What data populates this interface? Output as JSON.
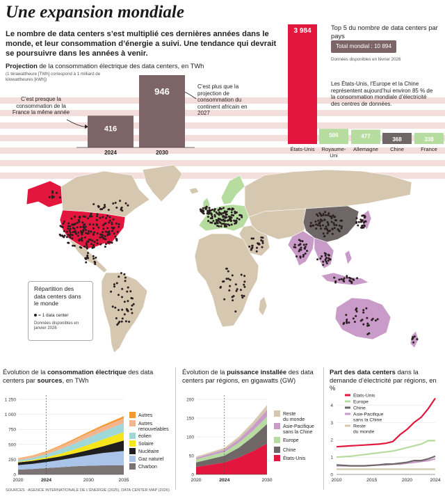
{
  "header": {
    "title": "Une expansion mondiale",
    "intro": "Le nombre de data centers s’est multiplié ces dernières années dans le monde, et leur consommation d’énergie a suivi. Une tendance qui devrait se poursuivre dans les années à venir."
  },
  "projection": {
    "title_bold": "Projection",
    "title_rest": " de la consommation électrique des data centers, en TWh",
    "unit_note": "(1 térawattheure [TWh] correspond à 1 milliard de kilowattheures [kWh])",
    "note_left": "C’est presque la consommation de la France la même année",
    "note_right": "C’est plus que la projection de consommation du continent africain en 2027"
  },
  "top5": {
    "title": "Top 5 du nombre de data centers par pays",
    "total": "Total mondial : 10 894",
    "date": "Données disponibles en février 2026",
    "note": "Les États-Unis, l’Europe et la Chine représentent aujourd’hui environ 85 % de la consommation mondiale d’électricité des centres de données."
  },
  "map": {
    "legend_title": "Répartition des data centers dans le monde",
    "legend_item": "= 1 data center",
    "legend_date": "Données disponibles en janvier 2026"
  },
  "footer": {
    "sources": "SOURCES : AGENCE INTERNATIONALE DE L’ÉNERGIE (2025), DATA CENTER MAP (2026)"
  },
  "colors": {
    "red": "#e3173e",
    "mauve": "#7d6567",
    "green": "#b6dca0",
    "grey": "#6f6767",
    "purple": "#c89bc8",
    "beige": "#d6c8b0",
    "orange": "#f39a2e",
    "peach": "#f4b48e",
    "cyan": "#9fd8d6",
    "yellow": "#f5e51a",
    "black": "#1f1f1f",
    "lightblue": "#a9c4e8",
    "darkgrey": "#7c7474"
  },
  "chart_data": [
    {
      "id": "projection",
      "type": "bar",
      "categories": [
        "2024",
        "2030"
      ],
      "values": [
        416,
        946
      ],
      "value_labels": [
        "416",
        "946"
      ],
      "ylabel": "TWh"
    },
    {
      "id": "top5",
      "type": "bar",
      "categories": [
        "États-Unis",
        "Royaume-Uni",
        "Allemagne",
        "Chine",
        "France"
      ],
      "values": [
        3984,
        506,
        477,
        368,
        338
      ],
      "value_labels": [
        "3 984",
        "506",
        "477",
        "368",
        "338"
      ],
      "colors": [
        "#e3173e",
        "#b6dca0",
        "#b6dca0",
        "#6f6767",
        "#b6dca0"
      ]
    },
    {
      "id": "sources",
      "type": "area",
      "title_parts": [
        "Évolution de la ",
        "consommation électrique",
        " des data centers par ",
        "sources",
        ", en TWh"
      ],
      "x": [
        2020,
        2022,
        2024,
        2026,
        2028,
        2030,
        2032,
        2035
      ],
      "xticks": [
        "2020",
        "2024",
        "2030",
        "2035"
      ],
      "yticks": [
        "1 250",
        "1 000",
        "750",
        "500",
        "250",
        "0"
      ],
      "ylim": [
        0,
        1250
      ],
      "series": [
        {
          "name": "Charbon",
          "color": "#7c7474",
          "values": [
            80,
            90,
            105,
            120,
            135,
            145,
            150,
            150
          ]
        },
        {
          "name": "Gaz naturel",
          "color": "#a9c4e8",
          "values": [
            75,
            85,
            100,
            120,
            145,
            175,
            205,
            240
          ]
        },
        {
          "name": "Nucléaire",
          "color": "#1f1f1f",
          "values": [
            45,
            50,
            55,
            60,
            70,
            85,
            110,
            175
          ]
        },
        {
          "name": "Solaire",
          "color": "#f5e51a",
          "values": [
            10,
            15,
            25,
            45,
            65,
            90,
            115,
            140
          ]
        },
        {
          "name": "éolien",
          "color": "#9fd8d6",
          "values": [
            25,
            35,
            50,
            75,
            100,
            120,
            135,
            150
          ]
        },
        {
          "name": "Autres renouvelables",
          "color": "#f4b48e",
          "values": [
            30,
            35,
            40,
            50,
            60,
            70,
            75,
            80
          ]
        },
        {
          "name": "Autres",
          "color": "#f39a2e",
          "values": [
            5,
            5,
            10,
            15,
            20,
            25,
            30,
            35
          ]
        }
      ]
    },
    {
      "id": "puissance",
      "type": "area",
      "title_parts": [
        "Évolution de la ",
        "puissance installée",
        " des data centers par régions, en gigawatts (GW)"
      ],
      "x": [
        2020,
        2022,
        2024,
        2026,
        2028,
        2030
      ],
      "xticks": [
        "2020",
        "2024",
        "2030"
      ],
      "yticks": [
        "200",
        "150",
        "100",
        "50",
        "0"
      ],
      "ylim": [
        0,
        200
      ],
      "series": [
        {
          "name": "États-Unis",
          "color": "#e3173e",
          "values": [
            20,
            26,
            32,
            45,
            62,
            82
          ]
        },
        {
          "name": "Chine",
          "color": "#6f6767",
          "values": [
            12,
            15,
            18,
            26,
            38,
            52
          ]
        },
        {
          "name": "Europe",
          "color": "#b6dca0",
          "values": [
            8,
            9,
            10,
            13,
            16,
            20
          ]
        },
        {
          "name": "Asie-Pacifique sans la Chine",
          "color": "#c89bc8",
          "values": [
            4,
            5,
            6,
            9,
            13,
            18
          ]
        },
        {
          "name": "Reste du monde",
          "color": "#d6c8b0",
          "values": [
            3,
            4,
            5,
            7,
            10,
            13
          ]
        }
      ]
    },
    {
      "id": "part",
      "type": "line",
      "title_parts": [
        "Part des data centers",
        " dans la demande d’électricité par régions, en %"
      ],
      "x": [
        2010,
        2012,
        2014,
        2016,
        2017,
        2018,
        2019,
        2020,
        2021,
        2022,
        2023,
        2024
      ],
      "xticks": [
        "2010",
        "2015",
        "2020",
        "2024"
      ],
      "yticks": [
        "4",
        "3",
        "2",
        "1",
        "0"
      ],
      "ylim": [
        0,
        4.5
      ],
      "series": [
        {
          "name": "États-Unis",
          "color": "#e3173e",
          "values": [
            1.6,
            1.65,
            1.7,
            1.75,
            1.8,
            1.9,
            2.3,
            2.6,
            3.0,
            3.3,
            3.8,
            4.4
          ]
        },
        {
          "name": "Europe",
          "color": "#b6dca0",
          "values": [
            1.0,
            1.05,
            1.15,
            1.25,
            1.3,
            1.35,
            1.45,
            1.55,
            1.65,
            1.75,
            1.95,
            1.95
          ]
        },
        {
          "name": "Chine",
          "color": "#6f6767",
          "values": [
            0.55,
            0.5,
            0.5,
            0.55,
            0.6,
            0.6,
            0.65,
            0.7,
            0.8,
            0.8,
            0.9,
            1.05
          ]
        },
        {
          "name": "Asie-Pacifique sans la Chine",
          "color": "#c89bc8",
          "values": [
            0.5,
            0.5,
            0.5,
            0.55,
            0.55,
            0.6,
            0.6,
            0.65,
            0.7,
            0.75,
            0.8,
            0.9
          ]
        },
        {
          "name": "Reste du monde",
          "color": "#d6c8b0",
          "values": [
            0.3,
            0.3,
            0.3,
            0.3,
            0.3,
            0.3,
            0.3,
            0.3,
            0.3,
            0.3,
            0.3,
            0.3
          ]
        }
      ]
    }
  ]
}
